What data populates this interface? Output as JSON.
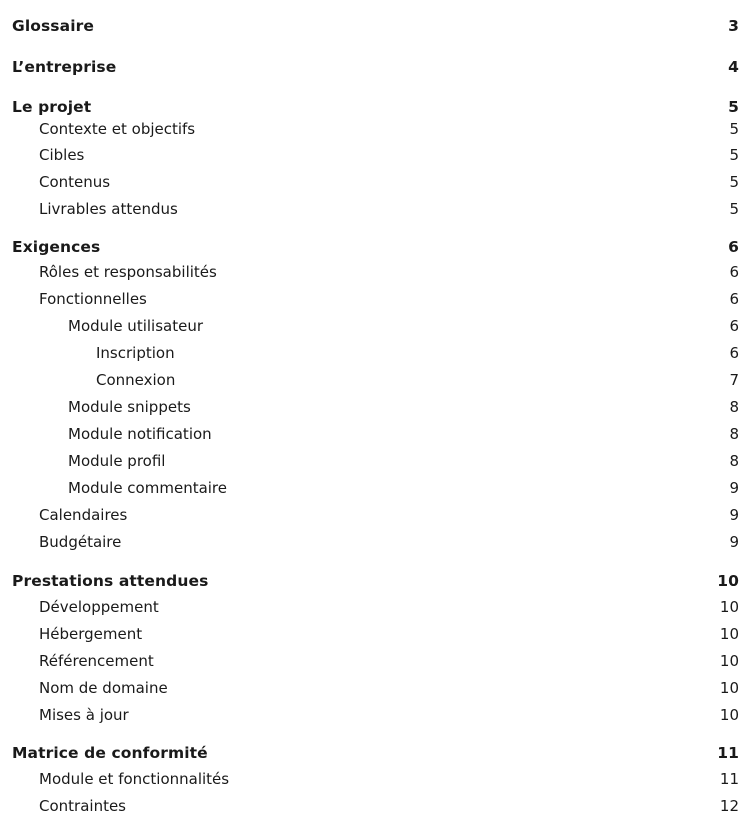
{
  "toc": [
    {
      "title": "Glossaire",
      "page": "3",
      "level": 1
    },
    {
      "title": "L’entreprise",
      "page": "4",
      "level": 1
    },
    {
      "title": "Le projet",
      "page": "5",
      "level": 1
    },
    {
      "title": "Contexte et objectifs",
      "page": "5",
      "level": 2
    },
    {
      "title": "Cibles",
      "page": "5",
      "level": 2
    },
    {
      "title": "Contenus",
      "page": "5",
      "level": 2
    },
    {
      "title": "Livrables attendus",
      "page": "5",
      "level": 2
    },
    {
      "title": "Exigences",
      "page": "6",
      "level": 1
    },
    {
      "title": "Rôles et responsabilités",
      "page": "6",
      "level": 2
    },
    {
      "title": "Fonctionnelles",
      "page": "6",
      "level": 2
    },
    {
      "title": "Module utilisateur",
      "page": "6",
      "level": 3
    },
    {
      "title": "Inscription",
      "page": "6",
      "level": 4
    },
    {
      "title": "Connexion",
      "page": "7",
      "level": 4
    },
    {
      "title": "Module snippets",
      "page": "8",
      "level": 3
    },
    {
      "title": "Module notification",
      "page": "8",
      "level": 3
    },
    {
      "title": "Module profil",
      "page": "8",
      "level": 3
    },
    {
      "title": "Module commentaire",
      "page": "9",
      "level": 3
    },
    {
      "title": "Calendaires",
      "page": "9",
      "level": 2
    },
    {
      "title": "Budgétaire",
      "page": "9",
      "level": 2
    },
    {
      "title": "Prestations attendues",
      "page": "10",
      "level": 1
    },
    {
      "title": "Développement",
      "page": "10",
      "level": 2
    },
    {
      "title": "Hébergement",
      "page": "10",
      "level": 2
    },
    {
      "title": "Référencement",
      "page": "10",
      "level": 2
    },
    {
      "title": "Nom de domaine",
      "page": "10",
      "level": 2
    },
    {
      "title": "Mises à jour",
      "page": "10",
      "level": 2
    },
    {
      "title": "Matrice de conformité",
      "page": "11",
      "level": 1
    },
    {
      "title": "Module et fonctionnalités",
      "page": "11",
      "level": 2
    },
    {
      "title": "Contraintes",
      "page": "12",
      "level": 2
    }
  ]
}
